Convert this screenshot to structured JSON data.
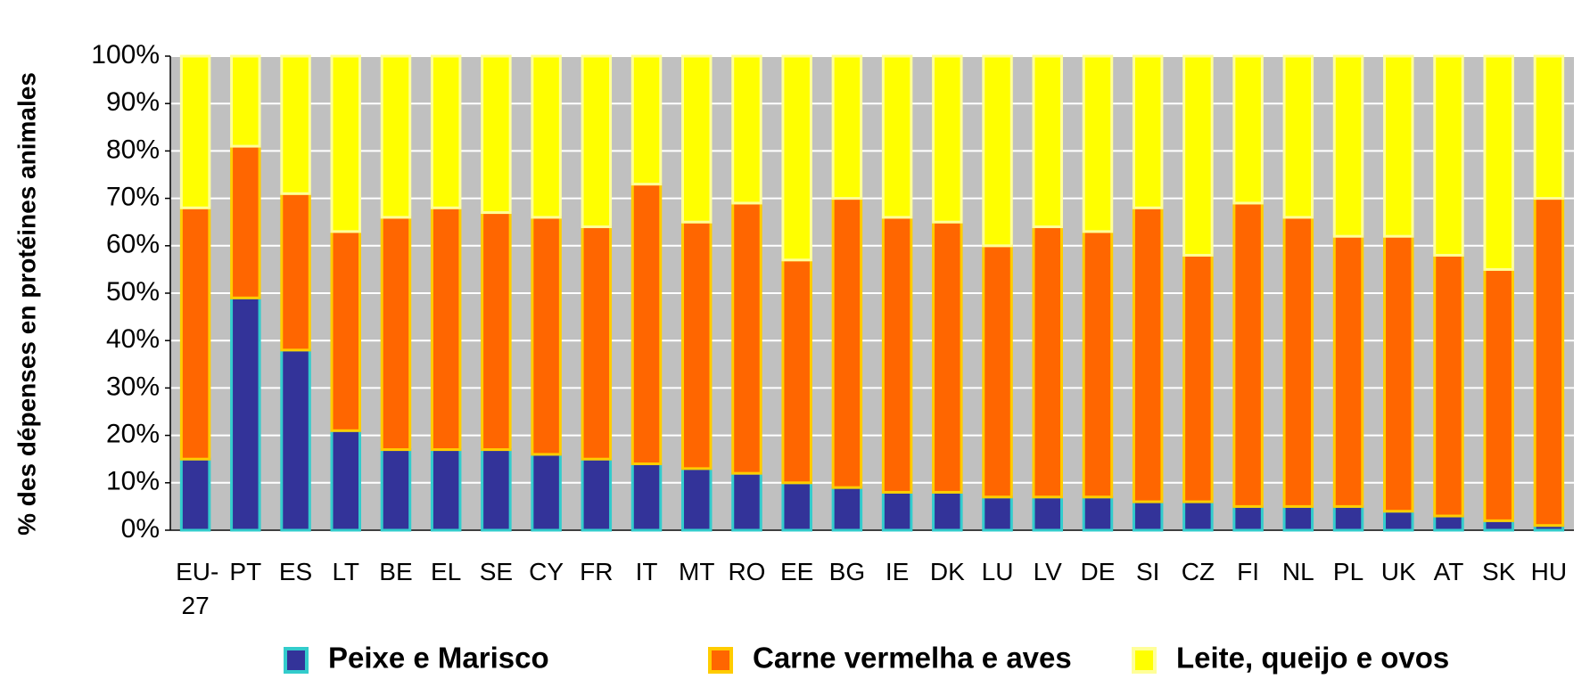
{
  "chart_data": {
    "type": "stacked_bar",
    "y_label": "% des dépenses  en protéines animales",
    "categories": [
      "EU-27",
      "PT",
      "ES",
      "LT",
      "BE",
      "EL",
      "SE",
      "CY",
      "FR",
      "IT",
      "MT",
      "RO",
      "EE",
      "BG",
      "IE",
      "DK",
      "LU",
      "LV",
      "DE",
      "SI",
      "CZ",
      "FI",
      "NL",
      "PL",
      "UK",
      "AT",
      "SK",
      "HU"
    ],
    "series": [
      {
        "name": "Peixe e Marisco",
        "color": "#333399",
        "border": "#33cccc",
        "values": [
          15,
          49,
          38,
          21,
          17,
          17,
          17,
          16,
          15,
          14,
          13,
          12,
          10,
          9,
          8,
          8,
          7,
          7,
          7,
          6,
          6,
          5,
          5,
          5,
          4,
          3,
          2,
          1
        ]
      },
      {
        "name": "Carne vermelha e aves",
        "color": "#ff6600",
        "border": "#ffcc00",
        "values": [
          53,
          32,
          33,
          42,
          49,
          51,
          50,
          50,
          49,
          59,
          52,
          57,
          47,
          61,
          58,
          57,
          53,
          57,
          56,
          62,
          52,
          64,
          61,
          57,
          58,
          55,
          53,
          69
        ]
      },
      {
        "name": "Leite, queijo e ovos",
        "color": "#ffff00",
        "border": "#ffff99",
        "values": [
          32,
          19,
          29,
          37,
          34,
          32,
          33,
          34,
          36,
          27,
          35,
          31,
          43,
          30,
          34,
          35,
          40,
          36,
          37,
          32,
          42,
          31,
          34,
          38,
          38,
          42,
          45,
          30
        ]
      }
    ],
    "ylim": [
      0,
      100
    ],
    "yticks": [
      {
        "value": 0,
        "label": "0%"
      },
      {
        "value": 10,
        "label": "10%"
      },
      {
        "value": 20,
        "label": "20%"
      },
      {
        "value": 30,
        "label": "30%"
      },
      {
        "value": 40,
        "label": "40%"
      },
      {
        "value": 50,
        "label": "50%"
      },
      {
        "value": 60,
        "label": "60%"
      },
      {
        "value": 70,
        "label": "70%"
      },
      {
        "value": 80,
        "label": "80%"
      },
      {
        "value": 90,
        "label": "90%"
      },
      {
        "value": 100,
        "label": "100%"
      }
    ],
    "grid": true,
    "plot_background": "#c0c0c0"
  }
}
